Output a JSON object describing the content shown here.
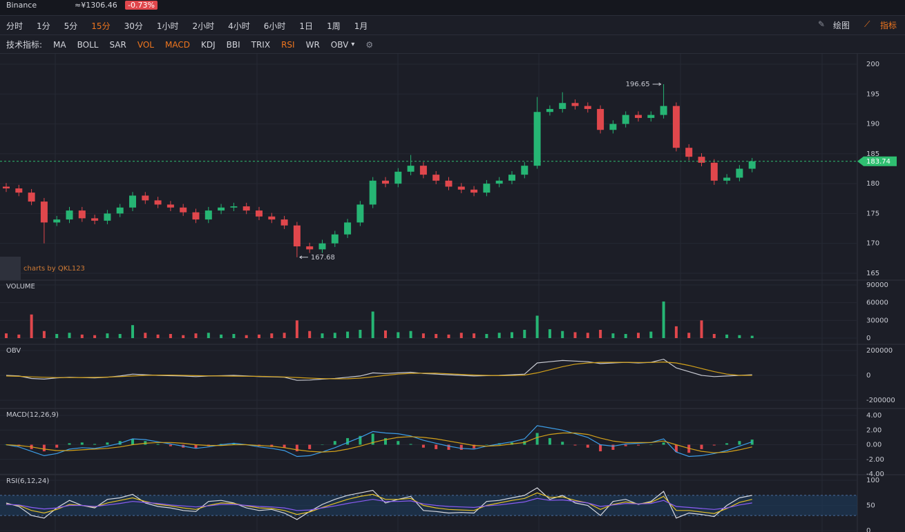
{
  "header": {
    "exchange": "Binance",
    "price": "≈¥1306.46",
    "change": "-0.73%"
  },
  "toolbar": {
    "periods": [
      "分时",
      "1分",
      "5分",
      "15分",
      "30分",
      "1小时",
      "2小时",
      "4小时",
      "6小时",
      "1日",
      "1周",
      "1月"
    ],
    "active_period": 3,
    "draw": "绘图",
    "indicator": "指标"
  },
  "indicators": {
    "label": "技术指标:",
    "items": [
      "MA",
      "BOLL",
      "SAR",
      "VOL",
      "MACD",
      "KDJ",
      "BBI",
      "TRIX",
      "RSI",
      "WR",
      "OBV"
    ],
    "active": [
      3,
      4,
      8
    ]
  },
  "watermark": "charts by QKL123",
  "chart_data": [
    {
      "type": "candlestick",
      "up_color": "#26b574",
      "down_color": "#e0474c",
      "last_price_color": "#2fbf71",
      "grid": true,
      "categories": [
        null,
        null,
        null,
        null,
        null,
        null,
        null,
        null,
        null,
        null,
        null,
        null,
        null,
        null,
        null,
        null,
        null,
        null,
        null,
        null,
        null,
        null,
        null,
        null,
        null,
        null,
        null,
        null,
        null,
        null,
        null,
        null,
        null,
        null,
        null,
        null,
        null,
        null,
        null,
        null,
        null,
        null,
        null,
        null,
        null,
        null,
        null,
        null,
        null,
        null,
        null,
        null,
        null,
        null,
        null,
        null,
        null,
        null,
        null,
        null
      ],
      "open": [
        179.5,
        179.2,
        178.5,
        177.0,
        173.5,
        174.0,
        175.5,
        174.2,
        173.8,
        175.0,
        176.0,
        178.0,
        177.2,
        176.5,
        176.0,
        175.2,
        174.0,
        175.5,
        176.0,
        176.2,
        175.5,
        174.5,
        174.0,
        173.0,
        169.5,
        169.0,
        170.0,
        171.5,
        173.5,
        176.5,
        180.5,
        180.0,
        182.0,
        183.0,
        181.5,
        180.5,
        179.5,
        179.0,
        178.5,
        180.0,
        180.5,
        181.5,
        183.0,
        192.0,
        192.5,
        193.5,
        193.0,
        192.5,
        189.0,
        190.0,
        191.5,
        191.0,
        191.5,
        193.0,
        186.0,
        184.5,
        183.5,
        180.5,
        181.0,
        182.5
      ],
      "high": [
        180.1,
        179.8,
        179.1,
        177.6,
        174.6,
        176.1,
        176.1,
        174.8,
        175.6,
        176.6,
        178.6,
        178.6,
        177.8,
        177.1,
        176.6,
        175.8,
        176.1,
        176.6,
        176.8,
        176.8,
        176.1,
        175.1,
        174.6,
        173.6,
        170.1,
        170.6,
        172.1,
        174.1,
        177.1,
        181.1,
        181.1,
        182.6,
        184.8,
        183.6,
        182.1,
        181.1,
        180.1,
        179.6,
        180.6,
        181.1,
        182.1,
        183.6,
        194.5,
        193.1,
        195.3,
        194.1,
        193.6,
        193.1,
        190.6,
        192.1,
        192.1,
        192.1,
        196.65,
        193.6,
        186.6,
        185.1,
        184.1,
        181.6,
        183.1,
        184.3
      ],
      "low": [
        178.6,
        177.9,
        176.4,
        170.0,
        172.9,
        173.4,
        173.6,
        173.2,
        173.2,
        174.4,
        175.4,
        176.6,
        175.9,
        175.4,
        174.6,
        173.4,
        173.4,
        174.9,
        175.4,
        174.9,
        173.9,
        173.4,
        172.4,
        167.68,
        168.4,
        168.4,
        169.4,
        170.9,
        172.9,
        175.9,
        179.4,
        179.4,
        181.4,
        180.9,
        179.9,
        178.9,
        178.4,
        177.9,
        177.9,
        179.4,
        179.9,
        180.9,
        182.5,
        191.4,
        191.9,
        192.4,
        191.9,
        188.4,
        188.4,
        189.4,
        190.4,
        190.4,
        190.9,
        185.4,
        183.9,
        182.9,
        179.8,
        179.9,
        180.4,
        181.9
      ],
      "close": [
        179.2,
        178.5,
        177.0,
        173.5,
        174.0,
        175.5,
        174.2,
        173.8,
        175.0,
        176.0,
        178.0,
        177.2,
        176.5,
        176.0,
        175.2,
        174.0,
        175.5,
        176.0,
        176.2,
        175.5,
        174.5,
        174.0,
        173.0,
        169.5,
        169.0,
        170.0,
        171.5,
        173.5,
        176.5,
        180.5,
        180.0,
        182.0,
        183.0,
        181.5,
        180.5,
        179.5,
        179.0,
        178.5,
        180.0,
        180.5,
        181.5,
        183.0,
        192.0,
        192.5,
        193.5,
        193.0,
        192.5,
        189.0,
        190.0,
        191.5,
        191.0,
        191.5,
        193.0,
        186.0,
        184.5,
        183.5,
        180.5,
        181.0,
        182.5,
        183.74
      ],
      "ylim": [
        165,
        200
      ],
      "yticks": [
        165,
        170,
        175,
        180,
        185,
        190,
        195,
        200
      ]
    },
    {
      "type": "bar",
      "title": "VOLUME",
      "up_color": "#26b574",
      "down_color": "#e0474c",
      "categories": [
        null,
        null,
        null,
        null,
        null,
        null,
        null,
        null,
        null,
        null,
        null,
        null,
        null,
        null,
        null,
        null,
        null,
        null,
        null,
        null,
        null,
        null,
        null,
        null,
        null,
        null,
        null,
        null,
        null,
        null,
        null,
        null,
        null,
        null,
        null,
        null,
        null,
        null,
        null,
        null,
        null,
        null,
        null,
        null,
        null,
        null,
        null,
        null,
        null,
        null,
        null,
        null,
        null,
        null,
        null,
        null,
        null,
        null,
        null,
        null
      ],
      "values": [
        8000,
        6000,
        40000,
        12000,
        7000,
        9000,
        6000,
        5000,
        8000,
        7000,
        22000,
        9000,
        6000,
        7000,
        5000,
        8000,
        9000,
        6000,
        7000,
        5000,
        6000,
        8000,
        9000,
        30000,
        12000,
        8000,
        9000,
        11000,
        14000,
        45000,
        13000,
        10000,
        12000,
        8000,
        7000,
        6000,
        9000,
        8000,
        7000,
        9000,
        10000,
        14000,
        38000,
        15000,
        12000,
        10000,
        9000,
        14000,
        8000,
        7000,
        9000,
        11000,
        62000,
        20000,
        9000,
        30000,
        7000,
        6000,
        5000,
        4000
      ],
      "ylim": [
        0,
        90000
      ],
      "yticks": [
        0,
        30000,
        60000,
        90000
      ]
    },
    {
      "type": "line",
      "title": "OBV",
      "categories": [
        null,
        null,
        null,
        null,
        null,
        null,
        null,
        null,
        null,
        null,
        null,
        null,
        null,
        null,
        null,
        null,
        null,
        null,
        null,
        null,
        null,
        null,
        null,
        null,
        null,
        null,
        null,
        null,
        null,
        null,
        null,
        null,
        null,
        null,
        null,
        null,
        null,
        null,
        null,
        null,
        null,
        null,
        null,
        null,
        null,
        null,
        null,
        null,
        null,
        null,
        null,
        null,
        null,
        null,
        null,
        null,
        null,
        null,
        null,
        null
      ],
      "series": [
        {
          "color": "#c9cbd3",
          "values": [
            0,
            -5000,
            -25000,
            -30000,
            -20000,
            -15000,
            -18000,
            -20000,
            -15000,
            -5000,
            10000,
            5000,
            0,
            -3000,
            -5000,
            -10000,
            -5000,
            -3000,
            0,
            -5000,
            -10000,
            -12000,
            -15000,
            -40000,
            -38000,
            -30000,
            -25000,
            -15000,
            -5000,
            20000,
            15000,
            20000,
            25000,
            15000,
            10000,
            5000,
            0,
            -5000,
            -2000,
            0,
            5000,
            10000,
            100000,
            110000,
            120000,
            115000,
            110000,
            95000,
            100000,
            105000,
            100000,
            105000,
            130000,
            60000,
            30000,
            0,
            -10000,
            -5000,
            0,
            5000
          ]
        },
        {
          "color": "#d4a21a",
          "values": [
            -5000,
            -8000,
            -12000,
            -15000,
            -18000,
            -18000,
            -17000,
            -16000,
            -14000,
            -10000,
            -5000,
            0,
            2000,
            2000,
            0,
            -2000,
            -4000,
            -5000,
            -6000,
            -7000,
            -8000,
            -10000,
            -13000,
            -17000,
            -22000,
            -26000,
            -28000,
            -27000,
            -22000,
            -12000,
            0,
            10000,
            16000,
            18000,
            17000,
            13000,
            8000,
            3000,
            0,
            -2000,
            -1000,
            2000,
            20000,
            45000,
            70000,
            90000,
            100000,
            105000,
            105000,
            105000,
            104000,
            104000,
            108000,
            100000,
            80000,
            55000,
            30000,
            10000,
            0,
            0
          ]
        }
      ],
      "ylim": [
        -200000,
        200000
      ],
      "yticks": [
        -200000,
        0,
        200000
      ]
    },
    {
      "type": "macd",
      "title": "MACD(12,26,9)",
      "up_color": "#26b574",
      "down_color": "#e0474c",
      "categories": [
        null,
        null,
        null,
        null,
        null,
        null,
        null,
        null,
        null,
        null,
        null,
        null,
        null,
        null,
        null,
        null,
        null,
        null,
        null,
        null,
        null,
        null,
        null,
        null,
        null,
        null,
        null,
        null,
        null,
        null,
        null,
        null,
        null,
        null,
        null,
        null,
        null,
        null,
        null,
        null,
        null,
        null,
        null,
        null,
        null,
        null,
        null,
        null,
        null,
        null,
        null,
        null,
        null,
        null,
        null,
        null,
        null,
        null,
        null,
        null
      ],
      "series": [
        {
          "color": "#3d9ee8",
          "values": [
            0,
            -0.3,
            -0.9,
            -1.5,
            -1.2,
            -0.6,
            -0.4,
            -0.5,
            -0.2,
            0.2,
            0.8,
            0.7,
            0.4,
            0.1,
            -0.2,
            -0.5,
            -0.3,
            0,
            0.2,
            0,
            -0.3,
            -0.5,
            -0.8,
            -1.6,
            -1.5,
            -1.0,
            -0.4,
            0.3,
            1.0,
            1.8,
            1.6,
            1.5,
            1.2,
            0.6,
            0.2,
            -0.2,
            -0.5,
            -0.6,
            -0.2,
            0.1,
            0.4,
            0.8,
            2.6,
            2.3,
            2.0,
            1.5,
            1.0,
            0.0,
            -0.2,
            0.1,
            0.2,
            0.3,
            0.8,
            -1.0,
            -1.6,
            -1.5,
            -1.2,
            -0.8,
            -0.2,
            0.4
          ]
        },
        {
          "color": "#d4a21a",
          "values": [
            0,
            -0.1,
            -0.3,
            -0.6,
            -0.8,
            -0.8,
            -0.7,
            -0.6,
            -0.5,
            -0.3,
            0.0,
            0.2,
            0.3,
            0.3,
            0.2,
            0.0,
            -0.1,
            -0.1,
            0,
            0,
            -0.1,
            -0.2,
            -0.4,
            -0.7,
            -0.9,
            -1.0,
            -0.9,
            -0.6,
            -0.2,
            0.3,
            0.7,
            1.0,
            1.1,
            1.0,
            0.8,
            0.5,
            0.2,
            -0.1,
            -0.2,
            -0.1,
            0.1,
            0.3,
            1.0,
            1.4,
            1.6,
            1.6,
            1.4,
            0.9,
            0.5,
            0.3,
            0.3,
            0.3,
            0.5,
            0.0,
            -0.5,
            -0.9,
            -1.1,
            -1.0,
            -0.7,
            -0.3
          ]
        }
      ],
      "histogram": [
        0,
        -0.2,
        -0.6,
        -0.9,
        -0.4,
        0.2,
        0.3,
        0.1,
        0.3,
        0.5,
        0.8,
        0.5,
        0.1,
        -0.2,
        -0.4,
        -0.5,
        -0.2,
        0.1,
        0.2,
        0,
        -0.2,
        -0.3,
        -0.4,
        -0.9,
        -0.6,
        0,
        0.5,
        0.9,
        1.2,
        1.5,
        0.9,
        0.5,
        0.1,
        -0.4,
        -0.6,
        -0.7,
        -0.7,
        -0.5,
        0,
        0.2,
        0.3,
        0.5,
        1.6,
        0.9,
        0.4,
        -0.1,
        -0.4,
        -0.9,
        -0.7,
        -0.2,
        -0.1,
        0,
        0.3,
        -1.0,
        -1.1,
        -0.6,
        -0.1,
        0.2,
        0.5,
        0.7
      ],
      "ylim": [
        -4,
        4
      ],
      "yticks": [
        {
          "value": -4,
          "label": "-4.00"
        },
        {
          "value": -2,
          "label": "-2.00"
        },
        {
          "value": 0,
          "label": "0.00"
        },
        {
          "value": 2,
          "label": "2.00"
        },
        {
          "value": 4,
          "label": "4.00"
        }
      ]
    },
    {
      "type": "line",
      "title": "RSI(6,12,24)",
      "band": [
        30,
        70
      ],
      "band_color": "#1d3a5c",
      "categories": [
        null,
        null,
        null,
        null,
        null,
        null,
        null,
        null,
        null,
        null,
        null,
        null,
        null,
        null,
        null,
        null,
        null,
        null,
        null,
        null,
        null,
        null,
        null,
        null,
        null,
        null,
        null,
        null,
        null,
        null,
        null,
        null,
        null,
        null,
        null,
        null,
        null,
        null,
        null,
        null,
        null,
        null,
        null,
        null,
        null,
        null,
        null,
        null,
        null,
        null,
        null,
        null,
        null,
        null,
        null,
        null,
        null,
        null,
        null,
        null
      ],
      "series": [
        {
          "color": "#d8d9e0",
          "values": [
            55,
            48,
            30,
            25,
            45,
            60,
            50,
            45,
            62,
            65,
            72,
            55,
            48,
            45,
            40,
            38,
            58,
            60,
            55,
            45,
            40,
            42,
            35,
            22,
            38,
            52,
            62,
            70,
            75,
            80,
            55,
            62,
            68,
            40,
            38,
            35,
            36,
            35,
            58,
            60,
            65,
            70,
            85,
            62,
            70,
            55,
            50,
            30,
            58,
            62,
            52,
            58,
            78,
            25,
            35,
            32,
            28,
            50,
            65,
            70
          ]
        },
        {
          "color": "#e6c229",
          "values": [
            53,
            50,
            40,
            35,
            42,
            52,
            50,
            47,
            55,
            60,
            65,
            58,
            52,
            49,
            45,
            42,
            50,
            55,
            54,
            49,
            45,
            44,
            40,
            32,
            37,
            46,
            54,
            62,
            68,
            72,
            62,
            62,
            64,
            50,
            45,
            42,
            41,
            40,
            50,
            55,
            60,
            64,
            75,
            66,
            67,
            60,
            55,
            42,
            52,
            57,
            53,
            56,
            68,
            40,
            40,
            37,
            34,
            44,
            56,
            62
          ]
        },
        {
          "color": "#8b5cf6",
          "values": [
            52,
            51,
            46,
            43,
            45,
            50,
            50,
            48,
            51,
            54,
            58,
            56,
            54,
            51,
            49,
            47,
            49,
            52,
            52,
            50,
            48,
            47,
            45,
            40,
            41,
            45,
            49,
            54,
            58,
            62,
            58,
            58,
            59,
            53,
            50,
            48,
            47,
            46,
            49,
            51,
            54,
            57,
            64,
            60,
            61,
            58,
            55,
            48,
            51,
            54,
            53,
            54,
            60,
            48,
            46,
            44,
            42,
            45,
            51,
            55
          ]
        }
      ],
      "ylim": [
        0,
        100
      ],
      "yticks": [
        0,
        50,
        100
      ]
    }
  ]
}
